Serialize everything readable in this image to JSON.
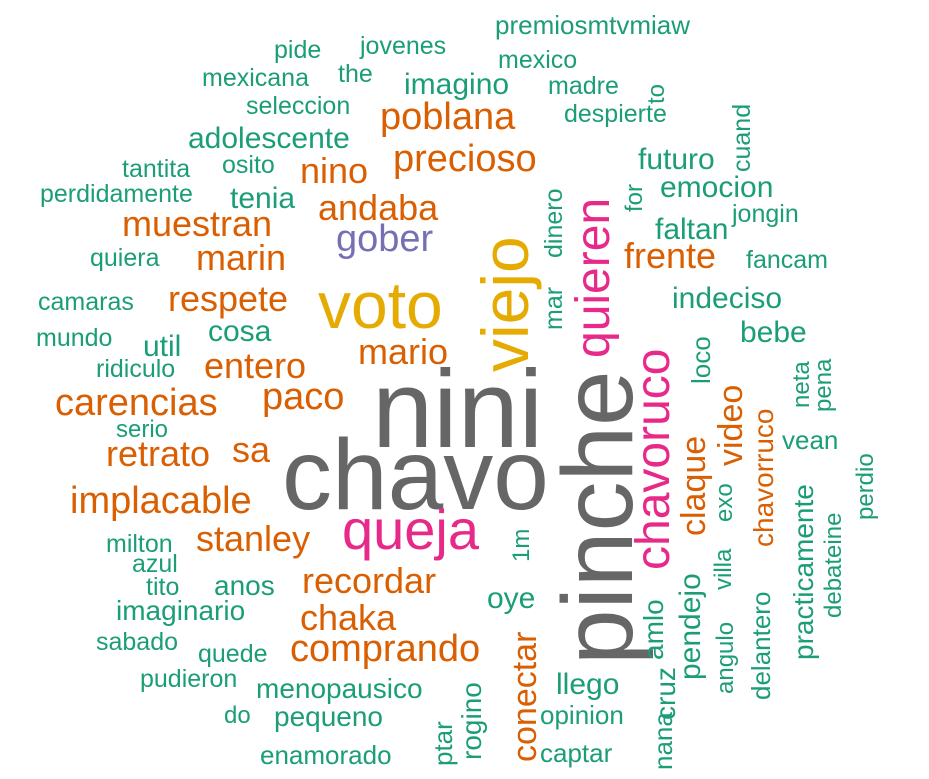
{
  "colors": {
    "gray": "#666666",
    "pink": "#e7298a",
    "gold": "#e6ab02",
    "purple": "#7570b3",
    "orange": "#d95f02",
    "teal": "#1b9e77"
  },
  "words": [
    {
      "text": "nini",
      "color": "gray"
    },
    {
      "text": "chavo",
      "color": "gray"
    },
    {
      "text": "pinche",
      "color": "gray"
    },
    {
      "text": "voto",
      "color": "gold"
    },
    {
      "text": "viejo",
      "color": "gold"
    },
    {
      "text": "queja",
      "color": "pink"
    },
    {
      "text": "quieren",
      "color": "pink"
    },
    {
      "text": "chavoruco",
      "color": "pink"
    },
    {
      "text": "gober",
      "color": "purple"
    },
    {
      "text": "poblana",
      "color": "orange"
    },
    {
      "text": "precioso",
      "color": "orange"
    },
    {
      "text": "nino",
      "color": "orange"
    },
    {
      "text": "andaba",
      "color": "orange"
    },
    {
      "text": "muestran",
      "color": "orange"
    },
    {
      "text": "marin",
      "color": "orange"
    },
    {
      "text": "respete",
      "color": "orange"
    },
    {
      "text": "mario",
      "color": "orange"
    },
    {
      "text": "entero",
      "color": "orange"
    },
    {
      "text": "paco",
      "color": "orange"
    },
    {
      "text": "carencias",
      "color": "orange"
    },
    {
      "text": "retrato",
      "color": "orange"
    },
    {
      "text": "sa",
      "color": "orange"
    },
    {
      "text": "implacable",
      "color": "orange"
    },
    {
      "text": "stanley",
      "color": "orange"
    },
    {
      "text": "recordar",
      "color": "orange"
    },
    {
      "text": "chaka",
      "color": "orange"
    },
    {
      "text": "comprando",
      "color": "orange"
    },
    {
      "text": "frente",
      "color": "orange"
    },
    {
      "text": "video",
      "color": "orange"
    },
    {
      "text": "claque",
      "color": "orange"
    },
    {
      "text": "chavorruco",
      "color": "orange"
    },
    {
      "text": "conectar",
      "color": "orange"
    },
    {
      "text": "premiosmtvmiaw",
      "color": "teal"
    },
    {
      "text": "jovenes",
      "color": "teal"
    },
    {
      "text": "pide",
      "color": "teal"
    },
    {
      "text": "mexico",
      "color": "teal"
    },
    {
      "text": "mexicana",
      "color": "teal"
    },
    {
      "text": "the",
      "color": "teal"
    },
    {
      "text": "imagino",
      "color": "teal"
    },
    {
      "text": "madre",
      "color": "teal"
    },
    {
      "text": "to",
      "color": "teal"
    },
    {
      "text": "seleccion",
      "color": "teal"
    },
    {
      "text": "despierte",
      "color": "teal"
    },
    {
      "text": "adolescente",
      "color": "teal"
    },
    {
      "text": "cuand",
      "color": "teal"
    },
    {
      "text": "futuro",
      "color": "teal"
    },
    {
      "text": "tantita",
      "color": "teal"
    },
    {
      "text": "osito",
      "color": "teal"
    },
    {
      "text": "emocion",
      "color": "teal"
    },
    {
      "text": "perdidamente",
      "color": "teal"
    },
    {
      "text": "tenia",
      "color": "teal"
    },
    {
      "text": "for",
      "color": "teal"
    },
    {
      "text": "dinero",
      "color": "teal"
    },
    {
      "text": "jongin",
      "color": "teal"
    },
    {
      "text": "faltan",
      "color": "teal"
    },
    {
      "text": "quiera",
      "color": "teal"
    },
    {
      "text": "fancam",
      "color": "teal"
    },
    {
      "text": "mar",
      "color": "teal"
    },
    {
      "text": "camaras",
      "color": "teal"
    },
    {
      "text": "indeciso",
      "color": "teal"
    },
    {
      "text": "cosa",
      "color": "teal"
    },
    {
      "text": "mundo",
      "color": "teal"
    },
    {
      "text": "bebe",
      "color": "teal"
    },
    {
      "text": "util",
      "color": "teal"
    },
    {
      "text": "loco",
      "color": "teal"
    },
    {
      "text": "neta",
      "color": "teal"
    },
    {
      "text": "pena",
      "color": "teal"
    },
    {
      "text": "ridiculo",
      "color": "teal"
    },
    {
      "text": "serio",
      "color": "teal"
    },
    {
      "text": "vean",
      "color": "teal"
    },
    {
      "text": "perdio",
      "color": "teal"
    },
    {
      "text": "practicamente",
      "color": "teal"
    },
    {
      "text": "exo",
      "color": "teal"
    },
    {
      "text": "debateine",
      "color": "teal"
    },
    {
      "text": "1m",
      "color": "teal"
    },
    {
      "text": "milton",
      "color": "teal"
    },
    {
      "text": "azul",
      "color": "teal"
    },
    {
      "text": "tito",
      "color": "teal"
    },
    {
      "text": "anos",
      "color": "teal"
    },
    {
      "text": "villa",
      "color": "teal"
    },
    {
      "text": "oye",
      "color": "teal"
    },
    {
      "text": "imaginario",
      "color": "teal"
    },
    {
      "text": "amlo",
      "color": "teal"
    },
    {
      "text": "pendejo",
      "color": "teal"
    },
    {
      "text": "angulo",
      "color": "teal"
    },
    {
      "text": "delantero",
      "color": "teal"
    },
    {
      "text": "sabado",
      "color": "teal"
    },
    {
      "text": "quede",
      "color": "teal"
    },
    {
      "text": "pudieron",
      "color": "teal"
    },
    {
      "text": "menopausico",
      "color": "teal"
    },
    {
      "text": "llego",
      "color": "teal"
    },
    {
      "text": "cruz",
      "color": "teal"
    },
    {
      "text": "do",
      "color": "teal"
    },
    {
      "text": "pequeno",
      "color": "teal"
    },
    {
      "text": "opinion",
      "color": "teal"
    },
    {
      "text": "rogino",
      "color": "teal"
    },
    {
      "text": "ptar",
      "color": "teal"
    },
    {
      "text": "nana",
      "color": "teal"
    },
    {
      "text": "captar",
      "color": "teal"
    },
    {
      "text": "enamorado",
      "color": "teal"
    }
  ]
}
